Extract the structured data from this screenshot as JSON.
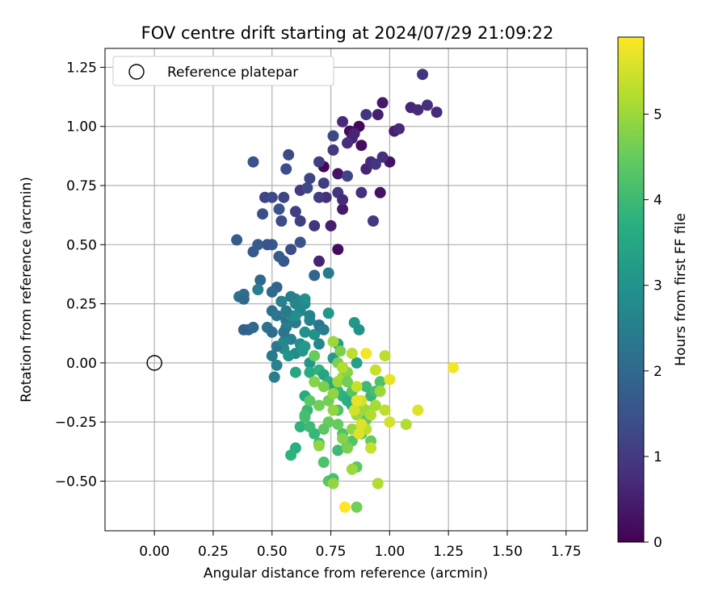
{
  "chart_data": {
    "type": "scatter",
    "title": "FOV centre drift starting at 2024/07/29 21:09:22",
    "xlabel": "Angular distance from reference (arcmin)",
    "ylabel": "Rotation from reference (arcmin)",
    "xlim": [
      -0.21,
      1.84
    ],
    "ylim": [
      -0.71,
      1.33
    ],
    "x_ticks": [
      0.0,
      0.25,
      0.5,
      0.75,
      1.0,
      1.25,
      1.5,
      1.75
    ],
    "x_tick_labels": [
      "0.00",
      "0.25",
      "0.50",
      "0.75",
      "1.00",
      "1.25",
      "1.50",
      "1.75"
    ],
    "y_ticks": [
      -0.5,
      -0.25,
      0.0,
      0.25,
      0.5,
      0.75,
      1.0,
      1.25
    ],
    "y_tick_labels": [
      "−0.50",
      "−0.25",
      "0.00",
      "0.25",
      "0.50",
      "0.75",
      "1.00",
      "1.25"
    ],
    "grid": true,
    "legend": {
      "position": "top-left",
      "entries": [
        "Reference platepar"
      ]
    },
    "reference_point": {
      "x": 0.0,
      "y": 0.0
    },
    "colorbar": {
      "label": "Hours from first FF file",
      "range": [
        0,
        5.9
      ],
      "ticks": [
        0,
        1,
        2,
        3,
        4,
        5
      ],
      "tick_labels": [
        "0",
        "1",
        "2",
        "3",
        "4",
        "5"
      ],
      "colormap": "viridis"
    },
    "points": [
      [
        0.72,
        0.83,
        0.1
      ],
      [
        0.88,
        0.92,
        0.2
      ],
      [
        0.96,
        0.72,
        0.3
      ],
      [
        0.87,
        1.0,
        0.1
      ],
      [
        1.0,
        0.85,
        0.3
      ],
      [
        0.83,
        0.98,
        0.2
      ],
      [
        0.97,
        1.1,
        0.4
      ],
      [
        0.78,
        0.48,
        0.2
      ],
      [
        0.95,
        1.05,
        0.5
      ],
      [
        0.8,
        0.65,
        0.4
      ],
      [
        1.02,
        0.98,
        0.5
      ],
      [
        0.9,
        0.82,
        0.6
      ],
      [
        0.92,
        0.85,
        0.7
      ],
      [
        0.97,
        0.87,
        0.8
      ],
      [
        0.84,
        0.95,
        0.6
      ],
      [
        0.78,
        0.8,
        0.3
      ],
      [
        0.75,
        0.58,
        0.5
      ],
      [
        0.7,
        0.43,
        0.6
      ],
      [
        0.8,
        1.02,
        0.7
      ],
      [
        0.85,
        0.97,
        0.6
      ],
      [
        1.04,
        0.99,
        0.7
      ],
      [
        1.09,
        1.08,
        0.6
      ],
      [
        1.12,
        1.07,
        0.7
      ],
      [
        1.14,
        1.22,
        0.9
      ],
      [
        1.16,
        1.09,
        0.8
      ],
      [
        1.2,
        1.06,
        0.7
      ],
      [
        0.9,
        1.05,
        0.9
      ],
      [
        0.94,
        0.84,
        0.9
      ],
      [
        0.88,
        0.72,
        0.8
      ],
      [
        0.93,
        0.6,
        1.0
      ],
      [
        0.82,
        0.93,
        0.8
      ],
      [
        0.76,
        0.9,
        1.0
      ],
      [
        0.7,
        0.85,
        1.1
      ],
      [
        0.66,
        0.78,
        1.2
      ],
      [
        0.62,
        0.73,
        1.0
      ],
      [
        0.6,
        0.64,
        1.1
      ],
      [
        0.68,
        0.58,
        0.9
      ],
      [
        0.73,
        0.7,
        0.8
      ],
      [
        0.78,
        0.72,
        0.9
      ],
      [
        0.8,
        0.69,
        0.7
      ],
      [
        0.76,
        0.96,
        1.3
      ],
      [
        0.82,
        0.79,
        1.2
      ],
      [
        0.72,
        0.76,
        1.1
      ],
      [
        0.7,
        0.7,
        1.0
      ],
      [
        0.57,
        0.88,
        1.3
      ],
      [
        0.56,
        0.82,
        1.4
      ],
      [
        0.47,
        0.7,
        1.2
      ],
      [
        0.5,
        0.7,
        1.3
      ],
      [
        0.55,
        0.7,
        1.2
      ],
      [
        0.65,
        0.74,
        1.3
      ],
      [
        0.54,
        0.6,
        1.4
      ],
      [
        0.62,
        0.6,
        1.1
      ],
      [
        0.46,
        0.63,
        1.4
      ],
      [
        0.42,
        0.85,
        1.5
      ],
      [
        0.53,
        0.65,
        1.5
      ],
      [
        0.5,
        0.5,
        1.6
      ],
      [
        0.48,
        0.5,
        1.5
      ],
      [
        0.42,
        0.47,
        1.6
      ],
      [
        0.44,
        0.5,
        1.7
      ],
      [
        0.35,
        0.52,
        1.7
      ],
      [
        0.55,
        0.43,
        1.6
      ],
      [
        0.53,
        0.45,
        1.7
      ],
      [
        0.62,
        0.51,
        1.5
      ],
      [
        0.58,
        0.48,
        1.4
      ],
      [
        0.68,
        0.37,
        1.9
      ],
      [
        0.74,
        0.38,
        2.4
      ],
      [
        0.45,
        0.35,
        2.0
      ],
      [
        0.52,
        0.32,
        1.9
      ],
      [
        0.5,
        0.3,
        2.0
      ],
      [
        0.38,
        0.29,
        2.1
      ],
      [
        0.36,
        0.28,
        2.2
      ],
      [
        0.38,
        0.27,
        2.0
      ],
      [
        0.44,
        0.31,
        2.5
      ],
      [
        0.54,
        0.26,
        2.4
      ],
      [
        0.5,
        0.22,
        2.2
      ],
      [
        0.52,
        0.2,
        2.3
      ],
      [
        0.56,
        0.18,
        2.2
      ],
      [
        0.6,
        0.27,
        2.6
      ],
      [
        0.62,
        0.22,
        2.7
      ],
      [
        0.64,
        0.25,
        2.8
      ],
      [
        0.66,
        0.2,
        2.6
      ],
      [
        0.6,
        0.17,
        2.4
      ],
      [
        0.56,
        0.15,
        2.5
      ],
      [
        0.58,
        0.1,
        2.6
      ],
      [
        0.55,
        0.06,
        2.9
      ],
      [
        0.52,
        0.07,
        2.3
      ],
      [
        0.5,
        0.03,
        2.4
      ],
      [
        0.52,
        -0.01,
        2.6
      ],
      [
        0.51,
        -0.06,
        2.5
      ],
      [
        0.55,
        0.09,
        2.7
      ],
      [
        0.62,
        0.08,
        2.9
      ],
      [
        0.64,
        0.13,
        3.0
      ],
      [
        0.6,
        0.04,
        2.8
      ],
      [
        0.66,
        0.0,
        3.1
      ],
      [
        0.68,
        0.12,
        3.0
      ],
      [
        0.7,
        0.16,
        2.3
      ],
      [
        0.72,
        0.14,
        2.5
      ],
      [
        0.74,
        0.21,
        3.1
      ],
      [
        0.7,
        0.08,
        2.7
      ],
      [
        0.78,
        0.08,
        3.3
      ],
      [
        0.76,
        0.02,
        3.2
      ],
      [
        0.4,
        0.14,
        1.9
      ],
      [
        0.38,
        0.14,
        1.8
      ],
      [
        0.42,
        0.15,
        2.0
      ],
      [
        0.48,
        0.15,
        2.2
      ],
      [
        0.5,
        0.13,
        2.1
      ],
      [
        0.55,
        0.13,
        2.3
      ],
      [
        0.58,
        0.2,
        2.8
      ],
      [
        0.6,
        0.2,
        2.9
      ],
      [
        0.54,
        0.26,
        2.6
      ],
      [
        0.85,
        0.17,
        3.1
      ],
      [
        0.87,
        0.14,
        3.0
      ],
      [
        0.58,
        0.28,
        2.5
      ],
      [
        0.6,
        0.25,
        2.7
      ],
      [
        0.64,
        0.27,
        2.9
      ],
      [
        0.66,
        0.18,
        2.6
      ],
      [
        0.56,
        0.22,
        2.4
      ],
      [
        0.64,
        0.07,
        3.2
      ],
      [
        0.63,
        0.05,
        3.1
      ],
      [
        0.57,
        0.03,
        3.0
      ],
      [
        0.6,
        -0.04,
        3.5
      ],
      [
        0.66,
        -0.04,
        3.6
      ],
      [
        0.7,
        -0.03,
        3.8
      ],
      [
        0.72,
        -0.05,
        3.4
      ],
      [
        0.74,
        -0.08,
        3.7
      ],
      [
        0.76,
        -0.1,
        3.5
      ],
      [
        0.78,
        -0.12,
        3.9
      ],
      [
        0.8,
        -0.14,
        3.8
      ],
      [
        0.82,
        -0.16,
        3.7
      ],
      [
        0.84,
        -0.18,
        3.6
      ],
      [
        0.86,
        0.0,
        3.3
      ],
      [
        0.9,
        -0.1,
        4.0
      ],
      [
        0.92,
        -0.14,
        3.9
      ],
      [
        0.94,
        -0.12,
        4.1
      ],
      [
        0.96,
        -0.08,
        4.2
      ],
      [
        0.64,
        -0.14,
        3.6
      ],
      [
        0.65,
        -0.2,
        3.9
      ],
      [
        0.62,
        -0.27,
        3.8
      ],
      [
        0.6,
        -0.36,
        3.7
      ],
      [
        0.58,
        -0.39,
        3.8
      ],
      [
        0.68,
        -0.3,
        3.9
      ],
      [
        0.66,
        -0.27,
        4.0
      ],
      [
        0.64,
        -0.22,
        4.1
      ],
      [
        0.7,
        -0.34,
        4.0
      ],
      [
        0.72,
        -0.42,
        4.2
      ],
      [
        0.74,
        -0.5,
        4.3
      ],
      [
        0.76,
        -0.49,
        4.1
      ],
      [
        0.78,
        -0.37,
        4.0
      ],
      [
        0.8,
        -0.3,
        4.2
      ],
      [
        0.82,
        -0.35,
        3.9
      ],
      [
        0.84,
        -0.33,
        4.3
      ],
      [
        0.86,
        -0.44,
        4.4
      ],
      [
        0.88,
        -0.3,
        4.2
      ],
      [
        0.9,
        -0.24,
        4.4
      ],
      [
        0.92,
        -0.33,
        4.5
      ],
      [
        0.86,
        -0.61,
        4.6
      ],
      [
        0.84,
        -0.12,
        4.3
      ],
      [
        0.78,
        -0.2,
        4.2
      ],
      [
        0.74,
        -0.25,
        4.5
      ],
      [
        0.72,
        -0.28,
        4.4
      ],
      [
        0.7,
        -0.18,
        4.6
      ],
      [
        0.68,
        -0.08,
        4.8
      ],
      [
        0.72,
        -0.1,
        4.7
      ],
      [
        0.74,
        -0.16,
        4.6
      ],
      [
        0.76,
        -0.2,
        4.9
      ],
      [
        0.78,
        -0.26,
        4.5
      ],
      [
        0.8,
        -0.32,
        4.8
      ],
      [
        0.82,
        -0.36,
        4.7
      ],
      [
        0.84,
        -0.28,
        4.9
      ],
      [
        0.86,
        -0.22,
        5.0
      ],
      [
        0.88,
        -0.18,
        5.1
      ],
      [
        0.9,
        -0.2,
        5.0
      ],
      [
        0.92,
        -0.22,
        5.2
      ],
      [
        0.94,
        -0.18,
        5.1
      ],
      [
        0.96,
        -0.12,
        5.0
      ],
      [
        0.98,
        -0.2,
        5.3
      ],
      [
        0.76,
        -0.13,
        4.9
      ],
      [
        0.78,
        -0.08,
        5.0
      ],
      [
        0.8,
        -0.06,
        5.1
      ],
      [
        0.82,
        -0.04,
        4.8
      ],
      [
        0.76,
        0.09,
        5.0
      ],
      [
        0.78,
        0.0,
        4.7
      ],
      [
        0.8,
        -0.02,
        5.2
      ],
      [
        0.84,
        0.04,
        5.3
      ],
      [
        0.86,
        -0.1,
        5.4
      ],
      [
        0.88,
        -0.16,
        5.5
      ],
      [
        0.9,
        -0.28,
        5.3
      ],
      [
        0.92,
        -0.36,
        5.4
      ],
      [
        0.87,
        -0.3,
        5.6
      ],
      [
        0.85,
        -0.2,
        5.5
      ],
      [
        0.86,
        -0.16,
        5.7
      ],
      [
        0.88,
        -0.26,
        5.6
      ],
      [
        0.9,
        0.04,
        5.8
      ],
      [
        0.94,
        -0.03,
        5.4
      ],
      [
        0.98,
        0.03,
        5.3
      ],
      [
        1.0,
        -0.07,
        5.7
      ],
      [
        1.0,
        -0.25,
        5.5
      ],
      [
        1.07,
        -0.26,
        5.2
      ],
      [
        1.12,
        -0.2,
        5.6
      ],
      [
        1.27,
        -0.02,
        5.8
      ],
      [
        0.81,
        -0.61,
        5.9
      ],
      [
        0.95,
        -0.51,
        5.2
      ],
      [
        0.76,
        -0.51,
        4.9
      ],
      [
        0.7,
        -0.35,
        4.9
      ],
      [
        0.84,
        -0.45,
        5.0
      ],
      [
        0.82,
        -0.08,
        4.6
      ],
      [
        0.79,
        0.05,
        4.7
      ],
      [
        0.68,
        0.03,
        4.5
      ],
      [
        0.66,
        -0.16,
        4.4
      ],
      [
        0.64,
        -0.23,
        4.1
      ]
    ]
  }
}
